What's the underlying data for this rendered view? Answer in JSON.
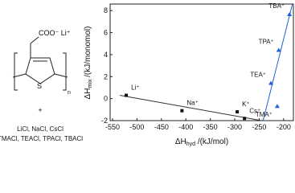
{
  "structure": {
    "anion_label": "COO⁻ Li⁺",
    "sulfur": "S",
    "repeat": "n",
    "plus": "+",
    "salts_1": "LiCl, NaCl, CsCl",
    "salts_2": "TMACl, TEACl, TPACl, TBACl"
  },
  "chart_data": {
    "type": "scatter",
    "xlabel": [
      "ΔH",
      "hyd",
      " /(kJ/mol)"
    ],
    "ylabel": [
      "ΔH",
      "mix",
      " /(kJ/monomol)"
    ],
    "xlim": [
      -555,
      -180
    ],
    "xticks": [
      -550,
      -500,
      -450,
      -400,
      -350,
      -300,
      -250,
      -200
    ],
    "ylim": [
      -2,
      8.6
    ],
    "yticks": [
      -2,
      0,
      2,
      4,
      6,
      8
    ],
    "series": [
      {
        "marker": "square",
        "color": "#111111",
        "labels": [
          "Li⁺",
          "Na⁺",
          "K⁺",
          "Cs⁺"
        ],
        "x": [
          -522,
          -408,
          -295,
          -280
        ],
        "values": [
          0.3,
          -1.1,
          -1.2,
          -1.8
        ]
      },
      {
        "marker": "triangle",
        "color": "#1f5fd6",
        "labels": [
          "TBA⁺",
          "TPA⁺",
          "TEA⁺",
          "TMA⁺"
        ],
        "x": [
          -188,
          -210,
          -226,
          -213
        ],
        "values": [
          7.65,
          4.4,
          1.4,
          -0.7
        ]
      }
    ],
    "fit_lines": [
      {
        "color": "#333333",
        "x": [
          -535,
          -245
        ],
        "values": [
          0.3,
          -2
        ]
      },
      {
        "color": "#1f5fd6",
        "x": [
          -242,
          -182
        ],
        "values": [
          -2,
          8.6
        ]
      }
    ]
  }
}
